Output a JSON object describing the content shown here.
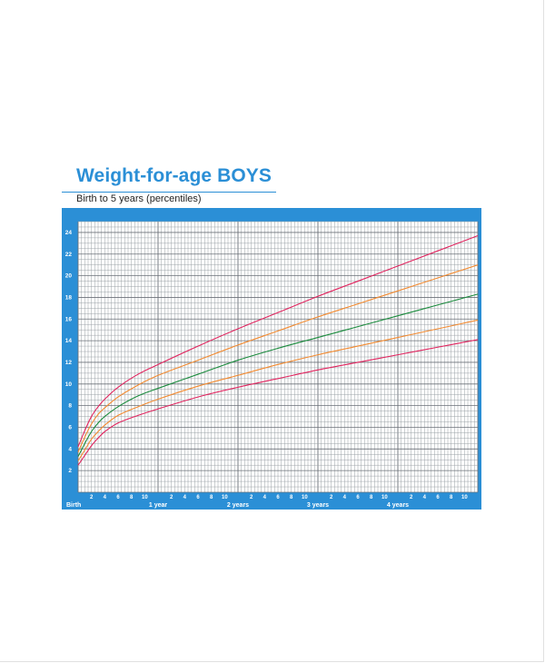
{
  "title": "Weight-for-age BOYS",
  "subtitle": "Birth to 5 years (percentiles)",
  "colors": {
    "frame": "#2b8fd6",
    "grid": "#9aa0a6",
    "red": "#e0245e",
    "orange": "#f28a30",
    "green": "#1a8a3c"
  },
  "chart_data": {
    "type": "line",
    "xlabel": "",
    "ylabel": "",
    "xlim": [
      0,
      60
    ],
    "ylim": [
      0,
      25
    ],
    "y_ticks": [
      2,
      4,
      6,
      8,
      10,
      12,
      14,
      16,
      18,
      20,
      22,
      24
    ],
    "x_month_ticks": [
      {
        "m": 2,
        "label": "2"
      },
      {
        "m": 4,
        "label": "4"
      },
      {
        "m": 6,
        "label": "6"
      },
      {
        "m": 8,
        "label": "8"
      },
      {
        "m": 10,
        "label": "10"
      },
      {
        "m": 14,
        "label": "2"
      },
      {
        "m": 16,
        "label": "4"
      },
      {
        "m": 18,
        "label": "6"
      },
      {
        "m": 20,
        "label": "8"
      },
      {
        "m": 22,
        "label": "10"
      },
      {
        "m": 26,
        "label": "2"
      },
      {
        "m": 28,
        "label": "4"
      },
      {
        "m": 30,
        "label": "6"
      },
      {
        "m": 32,
        "label": "8"
      },
      {
        "m": 34,
        "label": "10"
      },
      {
        "m": 38,
        "label": "2"
      },
      {
        "m": 40,
        "label": "4"
      },
      {
        "m": 42,
        "label": "6"
      },
      {
        "m": 44,
        "label": "8"
      },
      {
        "m": 46,
        "label": "10"
      },
      {
        "m": 50,
        "label": "2"
      },
      {
        "m": 52,
        "label": "4"
      },
      {
        "m": 54,
        "label": "6"
      },
      {
        "m": 56,
        "label": "8"
      },
      {
        "m": 58,
        "label": "10"
      }
    ],
    "x_year_labels": [
      {
        "m": 0,
        "label": "Birth"
      },
      {
        "m": 12,
        "label": "1 year"
      },
      {
        "m": 24,
        "label": "2 years"
      },
      {
        "m": 36,
        "label": "3 years"
      },
      {
        "m": 48,
        "label": "4 years"
      }
    ],
    "x": [
      0,
      1,
      2,
      3,
      4,
      6,
      9,
      12,
      18,
      24,
      30,
      36,
      42,
      48,
      54,
      60
    ],
    "series": [
      {
        "color": "red",
        "values": [
          2.5,
          3.4,
          4.3,
          5.0,
          5.6,
          6.4,
          7.1,
          7.7,
          8.8,
          9.7,
          10.5,
          11.3,
          12.0,
          12.7,
          13.4,
          14.1
        ]
      },
      {
        "color": "orange",
        "values": [
          2.9,
          3.9,
          4.9,
          5.6,
          6.2,
          7.1,
          7.9,
          8.6,
          9.8,
          10.8,
          11.8,
          12.7,
          13.5,
          14.3,
          15.1,
          15.9
        ]
      },
      {
        "color": "green",
        "values": [
          3.3,
          4.5,
          5.6,
          6.4,
          7.0,
          7.9,
          8.9,
          9.6,
          10.9,
          12.2,
          13.3,
          14.3,
          15.3,
          16.3,
          17.3,
          18.3
        ]
      },
      {
        "color": "orange",
        "values": [
          3.7,
          5.1,
          6.3,
          7.2,
          7.8,
          8.8,
          9.9,
          10.8,
          12.2,
          13.6,
          14.9,
          16.2,
          17.4,
          18.6,
          19.8,
          21.0
        ]
      },
      {
        "color": "red",
        "values": [
          4.2,
          5.7,
          7.0,
          7.9,
          8.6,
          9.7,
          10.9,
          11.8,
          13.5,
          15.1,
          16.6,
          18.1,
          19.5,
          20.9,
          22.3,
          23.7
        ]
      }
    ]
  }
}
